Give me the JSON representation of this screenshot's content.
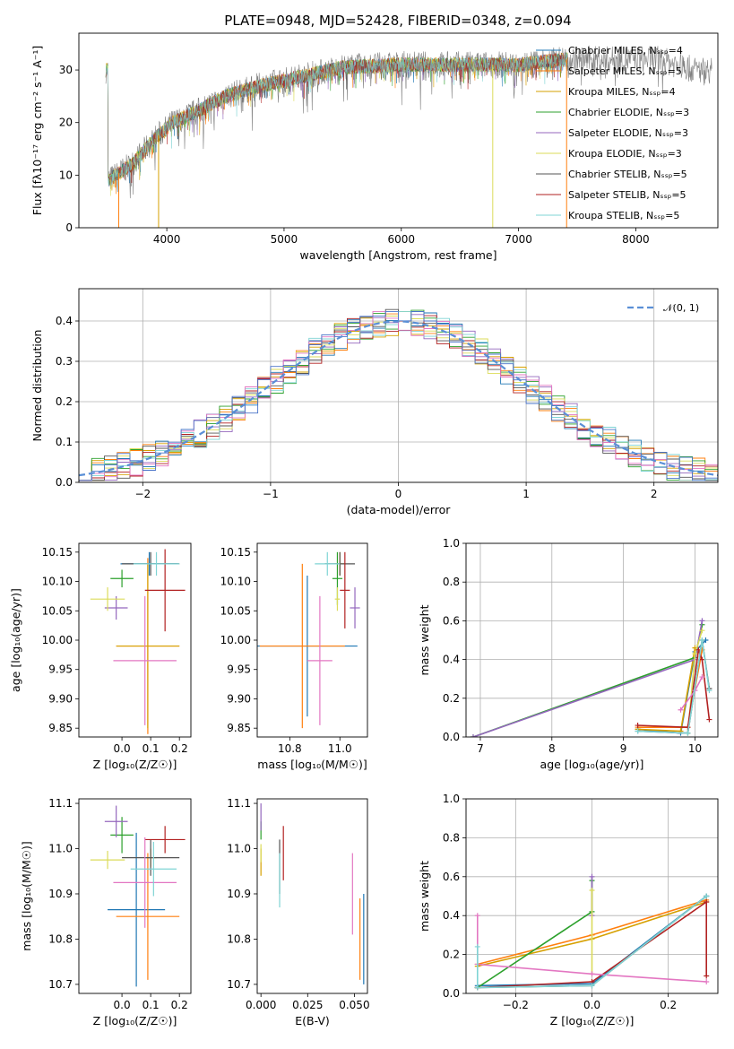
{
  "chart_data": [
    {
      "type": "line",
      "title": "PLATE=0948, MJD=52428, FIBERID=0348, z=0.094",
      "xlabel": "wavelength [Angstrom, rest frame]",
      "ylabel": "Flux [fλ10⁻¹⁷ erg cm⁻² s⁻¹ A⁻¹]",
      "xlim": [
        3250,
        8700
      ],
      "ylim": [
        0,
        37
      ],
      "xticks": [
        "4000",
        "5000",
        "6000",
        "7000",
        "8000"
      ],
      "yticks": [
        "0",
        "10",
        "20",
        "30"
      ],
      "continuum_points": [
        [
          3500,
          9
        ],
        [
          3700,
          12
        ],
        [
          3900,
          17
        ],
        [
          4050,
          20
        ],
        [
          4250,
          22
        ],
        [
          4500,
          25
        ],
        [
          4800,
          27
        ],
        [
          5100,
          28.5
        ],
        [
          5500,
          30.5
        ],
        [
          6000,
          31
        ],
        [
          6500,
          31
        ],
        [
          7000,
          31
        ],
        [
          7400,
          32
        ],
        [
          7800,
          32
        ],
        [
          8200,
          32
        ],
        [
          8500,
          30
        ]
      ],
      "series": [
        {
          "name": "Chabrier MILES, N_SSP=4",
          "color": "#1f77b4"
        },
        {
          "name": "Salpeter MILES, N_SSP=5",
          "color": "#ff7f0e"
        },
        {
          "name": "Kroupa MILES, N_SSP=4",
          "color": "#d6a000"
        },
        {
          "name": "Chabrier ELODIE, N_SSP=3",
          "color": "#2ca02c"
        },
        {
          "name": "Salpeter ELODIE, N_SSP=3",
          "color": "#9467bd"
        },
        {
          "name": "Kroupa ELODIE, N_SSP=3",
          "color": "#dbdb5a"
        },
        {
          "name": "Chabrier STELIB, N_SSP=5",
          "color": "#555555"
        },
        {
          "name": "Salpeter STELIB, N_SSP=5",
          "color": "#b22222"
        },
        {
          "name": "Kroupa STELIB, N_SSP=5",
          "color": "#7fd4d4"
        }
      ],
      "data_color": "#808080",
      "legend": "top-right"
    },
    {
      "type": "histogram",
      "xlabel": "(data-model)/error",
      "ylabel": "Normed distribution",
      "xlim": [
        -2.5,
        2.5
      ],
      "ylim": [
        0,
        0.48
      ],
      "xticks": [
        "−2",
        "−1",
        "0",
        "1",
        "2"
      ],
      "yticks": [
        "0.0",
        "0.1",
        "0.2",
        "0.3",
        "0.4"
      ],
      "reference_curve": {
        "name": "𝒩(0, 1)",
        "mean": 0,
        "sigma": 1,
        "color": "#5a8fd6"
      },
      "bin_width": 0.1,
      "grid": true,
      "legend": "top-right"
    },
    {
      "type": "scatter",
      "xlabel": "Z [log₁₀(Z/Z☉)]",
      "ylabel": "age  [log₁₀(age/yr)]",
      "xlim": [
        -0.15,
        0.24
      ],
      "ylim": [
        9.835,
        10.165
      ],
      "xticks": [
        "0.0",
        "0.1",
        "0.2"
      ],
      "yticks": [
        "9.85",
        "9.90",
        "9.95",
        "10.00",
        "10.05",
        "10.10",
        "10.15"
      ],
      "points": [
        {
          "x": 0.095,
          "y": 10.13,
          "xerr": 0.1,
          "yerr": 0.02,
          "color": "#1f77b4"
        },
        {
          "x": 0.09,
          "y": 9.99,
          "xerr": 0.11,
          "yerr": 0.15,
          "color": "#ff7f0e"
        },
        {
          "x": 0.09,
          "y": 9.99,
          "xerr": 0.11,
          "yerr": 0.14,
          "color": "#d6a000"
        },
        {
          "x": 0.0,
          "y": 10.105,
          "xerr": 0.04,
          "yerr": 0.015,
          "color": "#2ca02c"
        },
        {
          "x": -0.02,
          "y": 10.055,
          "xerr": 0.04,
          "yerr": 0.02,
          "color": "#9467bd"
        },
        {
          "x": -0.05,
          "y": 10.07,
          "xerr": 0.06,
          "yerr": 0.02,
          "color": "#dbdb5a"
        },
        {
          "x": 0.1,
          "y": 10.13,
          "xerr": 0.1,
          "yerr": 0.02,
          "color": "#555555"
        },
        {
          "x": 0.15,
          "y": 10.085,
          "xerr": 0.07,
          "yerr": 0.07,
          "color": "#b22222"
        },
        {
          "x": 0.08,
          "y": 9.965,
          "xerr": 0.11,
          "yerr": 0.11,
          "color": "#e377c2"
        },
        {
          "x": 0.12,
          "y": 10.13,
          "xerr": 0.08,
          "yerr": 0.02,
          "color": "#7fd4d4"
        }
      ]
    },
    {
      "type": "scatter",
      "xlabel": "mass [log₁₀(M/M☉)]",
      "ylabel": "",
      "xlim": [
        10.67,
        11.11
      ],
      "ylim": [
        9.835,
        10.165
      ],
      "xticks": [
        "10.8",
        "11.0"
      ],
      "yticks": [
        "9.85",
        "9.90",
        "9.95",
        "10.00",
        "10.05",
        "10.10",
        "10.15"
      ],
      "points": [
        {
          "x": 10.87,
          "y": 9.99,
          "xerr": 0.2,
          "yerr": 0.12,
          "color": "#1f77b4"
        },
        {
          "x": 10.85,
          "y": 9.99,
          "xerr": 0.17,
          "yerr": 0.14,
          "color": "#ff7f0e"
        },
        {
          "x": 11.0,
          "y": 10.13,
          "xerr": 0.02,
          "yerr": 0.02,
          "color": "#d6a000"
        },
        {
          "x": 10.99,
          "y": 10.105,
          "xerr": 0.02,
          "yerr": 0.045,
          "color": "#2ca02c"
        },
        {
          "x": 11.06,
          "y": 10.055,
          "xerr": 0.02,
          "yerr": 0.035,
          "color": "#9467bd"
        },
        {
          "x": 10.99,
          "y": 10.07,
          "xerr": 0.01,
          "yerr": 0.02,
          "color": "#dbdb5a"
        },
        {
          "x": 11.0,
          "y": 10.13,
          "xerr": 0.06,
          "yerr": 0.02,
          "color": "#555555"
        },
        {
          "x": 11.02,
          "y": 10.085,
          "xerr": 0.02,
          "yerr": 0.065,
          "color": "#b22222"
        },
        {
          "x": 10.92,
          "y": 9.965,
          "xerr": 0.05,
          "yerr": 0.11,
          "color": "#e377c2"
        },
        {
          "x": 10.95,
          "y": 10.13,
          "xerr": 0.05,
          "yerr": 0.02,
          "color": "#7fd4d4"
        }
      ]
    },
    {
      "type": "line",
      "xlabel": "age  [log₁₀(age/yr)]",
      "ylabel": "mass weight",
      "xlim": [
        6.8,
        10.32
      ],
      "ylim": [
        0,
        1
      ],
      "xticks": [
        "7",
        "8",
        "9",
        "10"
      ],
      "yticks": [
        "0.0",
        "0.2",
        "0.4",
        "0.6",
        "0.8",
        "1.0"
      ],
      "grid": true,
      "series": [
        {
          "color": "#1f77b4",
          "points": [
            [
              9.2,
              0.04
            ],
            [
              9.8,
              0.02
            ],
            [
              10.0,
              0.44
            ],
            [
              10.15,
              0.5
            ]
          ]
        },
        {
          "color": "#ff7f0e",
          "points": [
            [
              9.2,
              0.05
            ],
            [
              9.9,
              0.05
            ],
            [
              10.1,
              0.45
            ]
          ]
        },
        {
          "color": "#d6a000",
          "points": [
            [
              9.2,
              0.04
            ],
            [
              9.8,
              0.03
            ],
            [
              10.0,
              0.46
            ]
          ]
        },
        {
          "color": "#2ca02c",
          "points": [
            [
              6.9,
              0.0
            ],
            [
              10.0,
              0.41
            ],
            [
              10.1,
              0.58
            ]
          ]
        },
        {
          "color": "#9467bd",
          "points": [
            [
              6.9,
              0.0
            ],
            [
              10.0,
              0.4
            ],
            [
              10.1,
              0.6
            ]
          ]
        },
        {
          "color": "#dbdb5a",
          "points": [
            [
              9.9,
              0.02
            ],
            [
              10.0,
              0.43
            ],
            [
              10.1,
              0.55
            ]
          ]
        },
        {
          "color": "#555555",
          "points": [
            [
              9.2,
              0.03
            ],
            [
              9.9,
              0.02
            ],
            [
              10.1,
              0.5
            ],
            [
              10.2,
              0.25
            ]
          ]
        },
        {
          "color": "#b22222",
          "points": [
            [
              9.2,
              0.06
            ],
            [
              9.9,
              0.05
            ],
            [
              10.05,
              0.45
            ],
            [
              10.1,
              0.4
            ],
            [
              10.2,
              0.09
            ]
          ]
        },
        {
          "color": "#e377c2",
          "points": [
            [
              9.8,
              0.14
            ],
            [
              10.0,
              0.24
            ],
            [
              10.1,
              0.31
            ]
          ]
        },
        {
          "color": "#7fd4d4",
          "points": [
            [
              9.2,
              0.03
            ],
            [
              9.9,
              0.02
            ],
            [
              10.1,
              0.5
            ],
            [
              10.2,
              0.24
            ]
          ]
        }
      ]
    },
    {
      "type": "scatter",
      "xlabel": "Z [log₁₀(Z/Z☉)]",
      "ylabel": "mass [log₁₀(M/M☉)]",
      "xlim": [
        -0.15,
        0.24
      ],
      "ylim": [
        10.68,
        11.11
      ],
      "xticks": [
        "0.0",
        "0.1",
        "0.2"
      ],
      "yticks": [
        "10.7",
        "10.8",
        "10.9",
        "11.0",
        "11.1"
      ],
      "points": [
        {
          "x": 0.05,
          "y": 10.865,
          "xerr": 0.1,
          "yerr": 0.17,
          "color": "#1f77b4"
        },
        {
          "x": 0.09,
          "y": 10.85,
          "xerr": 0.11,
          "yerr": 0.14,
          "color": "#ff7f0e"
        },
        {
          "x": 0.1,
          "y": 10.98,
          "xerr": 0.02,
          "yerr": 0.02,
          "color": "#d6a000"
        },
        {
          "x": 0.0,
          "y": 11.03,
          "xerr": 0.04,
          "yerr": 0.04,
          "color": "#2ca02c"
        },
        {
          "x": -0.02,
          "y": 11.06,
          "xerr": 0.04,
          "yerr": 0.035,
          "color": "#9467bd"
        },
        {
          "x": -0.05,
          "y": 10.975,
          "xerr": 0.06,
          "yerr": 0.02,
          "color": "#dbdb5a"
        },
        {
          "x": 0.1,
          "y": 10.98,
          "xerr": 0.1,
          "yerr": 0.04,
          "color": "#555555"
        },
        {
          "x": 0.15,
          "y": 11.02,
          "xerr": 0.07,
          "yerr": 0.03,
          "color": "#b22222"
        },
        {
          "x": 0.08,
          "y": 10.925,
          "xerr": 0.11,
          "yerr": 0.1,
          "color": "#e377c2"
        },
        {
          "x": 0.11,
          "y": 10.955,
          "xerr": 0.08,
          "yerr": 0.06,
          "color": "#7fd4d4"
        }
      ]
    },
    {
      "type": "scatter",
      "xlabel": "E(B-V)",
      "ylabel": "",
      "xlim": [
        -0.002,
        0.057
      ],
      "ylim": [
        10.68,
        11.11
      ],
      "xticks": [
        "0.000",
        "0.025",
        "0.050"
      ],
      "yticks": [
        "10.7",
        "10.8",
        "10.9",
        "11.0",
        "11.1"
      ],
      "points": [
        {
          "x": 0.055,
          "y": 10.8,
          "xerr": 0,
          "yerr": 0.1,
          "color": "#1f77b4"
        },
        {
          "x": 0.053,
          "y": 10.8,
          "xerr": 0,
          "yerr": 0.09,
          "color": "#ff7f0e"
        },
        {
          "x": 0.0,
          "y": 10.97,
          "xerr": 0,
          "yerr": 0.03,
          "color": "#d6a000"
        },
        {
          "x": 0.0,
          "y": 11.04,
          "xerr": 0,
          "yerr": 0.02,
          "color": "#2ca02c"
        },
        {
          "x": 0.0,
          "y": 11.07,
          "xerr": 0,
          "yerr": 0.03,
          "color": "#9467bd"
        },
        {
          "x": 0.0,
          "y": 10.99,
          "xerr": 0,
          "yerr": 0.02,
          "color": "#dbdb5a"
        },
        {
          "x": 0.01,
          "y": 10.96,
          "xerr": 0,
          "yerr": 0.06,
          "color": "#555555"
        },
        {
          "x": 0.012,
          "y": 10.99,
          "xerr": 0,
          "yerr": 0.06,
          "color": "#b22222"
        },
        {
          "x": 0.049,
          "y": 10.9,
          "xerr": 0,
          "yerr": 0.09,
          "color": "#e377c2"
        },
        {
          "x": 0.01,
          "y": 10.93,
          "xerr": 0,
          "yerr": 0.06,
          "color": "#7fd4d4"
        }
      ]
    },
    {
      "type": "line",
      "xlabel": "Z [log₁₀(Z/Z☉)]",
      "ylabel": "mass weight",
      "xlim": [
        -0.33,
        0.33
      ],
      "ylim": [
        0,
        1
      ],
      "xticks": [
        "−0.2",
        "0.0",
        "0.2"
      ],
      "yticks": [
        "0.0",
        "0.2",
        "0.4",
        "0.6",
        "0.8",
        "1.0"
      ],
      "grid": true,
      "series": [
        {
          "color": "#1f77b4",
          "points": [
            [
              -0.3,
              0.04
            ],
            [
              0.0,
              0.05
            ],
            [
              0.3,
              0.5
            ]
          ]
        },
        {
          "color": "#ff7f0e",
          "points": [
            [
              -0.3,
              0.15
            ],
            [
              0.0,
              0.3
            ],
            [
              0.3,
              0.48
            ]
          ]
        },
        {
          "color": "#d6a000",
          "points": [
            [
              -0.3,
              0.14
            ],
            [
              0.0,
              0.28
            ],
            [
              0.3,
              0.47
            ]
          ]
        },
        {
          "color": "#2ca02c",
          "points": [
            [
              -0.3,
              0.03
            ],
            [
              0.0,
              0.42
            ],
            [
              0.0,
              0.58
            ]
          ]
        },
        {
          "color": "#9467bd",
          "points": [
            [
              0.0,
              0.4
            ],
            [
              0.0,
              0.6
            ]
          ]
        },
        {
          "color": "#dbdb5a",
          "points": [
            [
              0.0,
              0.1
            ],
            [
              0.0,
              0.53
            ]
          ]
        },
        {
          "color": "#555555",
          "points": [
            [
              -0.3,
              0.03
            ],
            [
              0.0,
              0.04
            ],
            [
              0.3,
              0.5
            ]
          ]
        },
        {
          "color": "#b22222",
          "points": [
            [
              -0.3,
              0.03
            ],
            [
              0.0,
              0.06
            ],
            [
              0.3,
              0.47
            ],
            [
              0.3,
              0.09
            ]
          ]
        },
        {
          "color": "#e377c2",
          "points": [
            [
              -0.3,
              0.4
            ],
            [
              -0.3,
              0.15
            ],
            [
              0.0,
              0.1
            ],
            [
              0.3,
              0.06
            ]
          ]
        },
        {
          "color": "#7fd4d4",
          "points": [
            [
              -0.3,
              0.24
            ],
            [
              -0.3,
              0.03
            ],
            [
              0.0,
              0.04
            ],
            [
              0.3,
              0.5
            ]
          ]
        }
      ]
    }
  ]
}
